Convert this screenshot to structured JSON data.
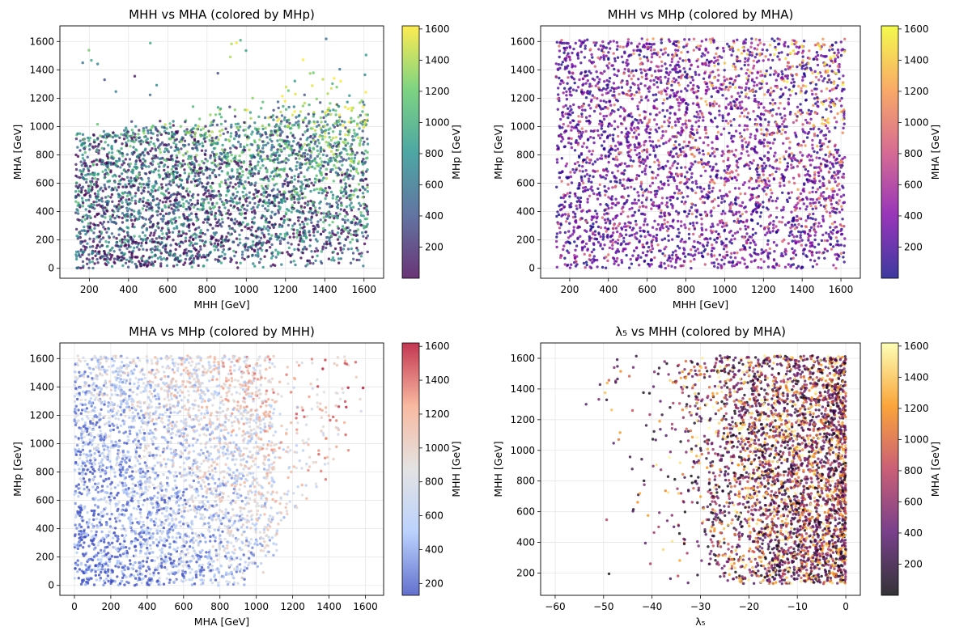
{
  "chart_data": [
    {
      "type": "scatter",
      "title": "MHH vs MHA (colored by MHp)",
      "xlabel": "MHH [GeV]",
      "ylabel": "MHA [GeV]",
      "xlim": [
        50,
        1700
      ],
      "ylim": [
        -70,
        1710
      ],
      "xticks": [
        200,
        400,
        600,
        800,
        1000,
        1200,
        1400,
        1600
      ],
      "yticks": [
        0,
        200,
        400,
        600,
        800,
        1000,
        1200,
        1400,
        1600
      ],
      "grid": true,
      "colorbar": {
        "label": "MHp [GeV]",
        "colormap": "viridis",
        "range": [
          0,
          1620
        ],
        "ticks": [
          200,
          400,
          600,
          800,
          1000,
          1200,
          1400,
          1600
        ],
        "colors": [
          "#440154",
          "#3b528b",
          "#21918c",
          "#5ec962",
          "#fde725"
        ]
      },
      "x_range": [
        130,
        1620
      ],
      "y_range": [
        0,
        1620
      ],
      "density_note": "dense near y<1000, thinning at high y except at large x"
    },
    {
      "type": "scatter",
      "title": "MHH vs MHp (colored by MHA)",
      "xlabel": "MHH [GeV]",
      "ylabel": "MHp [GeV]",
      "xlim": [
        50,
        1700
      ],
      "ylim": [
        -70,
        1710
      ],
      "xticks": [
        200,
        400,
        600,
        800,
        1000,
        1200,
        1400,
        1600
      ],
      "yticks": [
        0,
        200,
        400,
        600,
        800,
        1000,
        1200,
        1400,
        1600
      ],
      "grid": true,
      "colorbar": {
        "label": "MHA [GeV]",
        "colormap": "plasma",
        "range": [
          0,
          1620
        ],
        "ticks": [
          200,
          400,
          600,
          800,
          1000,
          1200,
          1400,
          1600
        ],
        "colors": [
          "#0d0887",
          "#7e03a8",
          "#cc4778",
          "#f89540",
          "#f0f921"
        ]
      },
      "x_range": [
        130,
        1620
      ],
      "y_range": [
        0,
        1620
      ]
    },
    {
      "type": "scatter",
      "title": "MHA vs MHp (colored by MHH)",
      "xlabel": "MHA [GeV]",
      "ylabel": "MHp [GeV]",
      "xlim": [
        -80,
        1700
      ],
      "ylim": [
        -70,
        1710
      ],
      "xticks": [
        0,
        200,
        400,
        600,
        800,
        1000,
        1200,
        1400,
        1600
      ],
      "yticks": [
        0,
        200,
        400,
        600,
        800,
        1000,
        1200,
        1400,
        1600
      ],
      "grid": true,
      "colorbar": {
        "label": "MHH [GeV]",
        "colormap": "coolwarm",
        "range": [
          130,
          1620
        ],
        "ticks": [
          200,
          400,
          600,
          800,
          1000,
          1200,
          1400,
          1600
        ],
        "colors": [
          "#3b4cc0",
          "#aac7fd",
          "#dddcdc",
          "#f7a889",
          "#b40426"
        ]
      },
      "x_range": [
        0,
        1620
      ],
      "y_range": [
        0,
        1620
      ]
    },
    {
      "type": "scatter",
      "title": "λ₅ vs MHH (colored by MHA)",
      "xlabel": "λ₅",
      "ylabel": "MHH [GeV]",
      "xlim": [
        -63,
        3
      ],
      "ylim": [
        55,
        1700
      ],
      "xticks": [
        -60,
        -50,
        -40,
        -30,
        -20,
        -10,
        0
      ],
      "yticks": [
        200,
        400,
        600,
        800,
        1000,
        1200,
        1400,
        1600
      ],
      "grid": true,
      "colorbar": {
        "label": "MHA [GeV]",
        "colormap": "inferno",
        "range": [
          0,
          1620
        ],
        "ticks": [
          200,
          400,
          600,
          800,
          1000,
          1200,
          1400,
          1600
        ],
        "colors": [
          "#000004",
          "#57106e",
          "#bc3754",
          "#f98e09",
          "#fcffa4"
        ]
      },
      "x_range": [
        -60,
        0
      ],
      "y_range": [
        130,
        1620
      ]
    }
  ]
}
